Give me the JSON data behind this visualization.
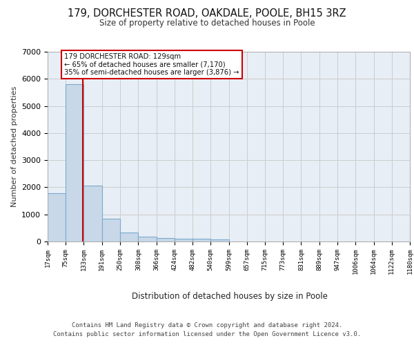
{
  "title_line1": "179, DORCHESTER ROAD, OAKDALE, POOLE, BH15 3RZ",
  "title_line2": "Size of property relative to detached houses in Poole",
  "xlabel": "Distribution of detached houses by size in Poole",
  "ylabel": "Number of detached properties",
  "annotation_line1": "179 DORCHESTER ROAD: 129sqm",
  "annotation_line2": "← 65% of detached houses are smaller (7,170)",
  "annotation_line3": "35% of semi-detached houses are larger (3,876) →",
  "footer_line1": "Contains HM Land Registry data © Crown copyright and database right 2024.",
  "footer_line2": "Contains public sector information licensed under the Open Government Licence v3.0.",
  "property_size_sqm": 129,
  "bar_color": "#c8d8e8",
  "bar_edge_color": "#7aaacf",
  "vline_color": "#cc0000",
  "annotation_box_color": "#cc0000",
  "background_color": "#e8eef5",
  "bin_edges": [
    17,
    75,
    133,
    191,
    250,
    308,
    366,
    424,
    482,
    540,
    599,
    657,
    715,
    773,
    831,
    889,
    947,
    1006,
    1064,
    1122,
    1180
  ],
  "bar_heights": [
    1780,
    5800,
    2060,
    830,
    340,
    185,
    120,
    105,
    95,
    75,
    0,
    0,
    0,
    0,
    0,
    0,
    0,
    0,
    0,
    0
  ],
  "ylim": [
    0,
    7000
  ],
  "yticks": [
    0,
    1000,
    2000,
    3000,
    4000,
    5000,
    6000,
    7000
  ]
}
